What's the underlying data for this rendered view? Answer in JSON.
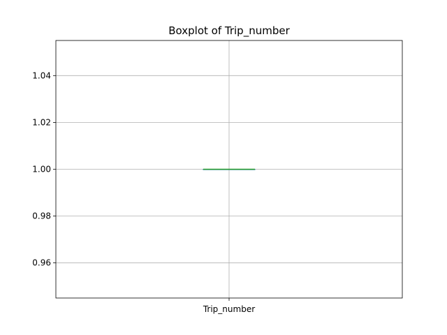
{
  "chart_data": {
    "type": "box",
    "title": "Boxplot of Trip_number",
    "xlabel": "",
    "ylabel": "",
    "categories": [
      "Trip_number"
    ],
    "boxes": [
      {
        "category": "Trip_number",
        "min": 1.0,
        "q1": 1.0,
        "median": 1.0,
        "q3": 1.0,
        "max": 1.0
      }
    ],
    "ylim": [
      0.945,
      1.055
    ],
    "yticks": [
      0.96,
      0.98,
      1.0,
      1.02,
      1.04
    ],
    "ytick_labels": [
      "0.96",
      "0.98",
      "1.00",
      "1.02",
      "1.04"
    ],
    "grid": true,
    "colors": {
      "box": "#1f77b4",
      "median": "#2ca02c",
      "grid": "#b0b0b0"
    }
  }
}
